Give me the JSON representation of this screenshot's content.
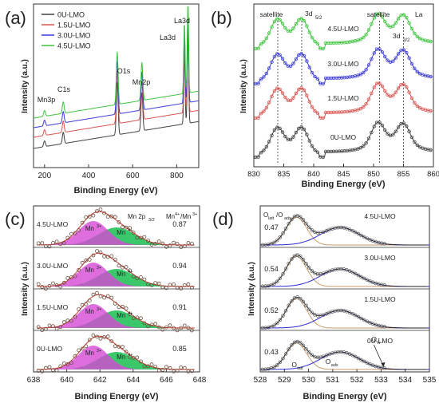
{
  "colors": {
    "0U-LMO": "#404040",
    "1.5U-LMO": "#d9534f",
    "3.0U-LMO": "#3a3ad8",
    "4.5U-LMO": "#3cc43c",
    "mn3_fill": "#d64ad6",
    "mn4_fill": "#25c25a",
    "fit_red": "#c0392b",
    "fit_blue": "#2a2ad0",
    "olat_fill": "#c89a6e",
    "oads_fill": "#8a7ad6"
  },
  "chart_data": [
    {
      "panel_label": "(a)",
      "type": "line",
      "xlabel": "Binding Energy (eV)",
      "ylabel": "Intensity (a.u.)",
      "xlim": [
        150,
        900
      ],
      "xticks": [
        200,
        400,
        600,
        800
      ],
      "legend_position": "top-left",
      "series": [
        {
          "name": "0U-LMO"
        },
        {
          "name": "1.5U-LMO"
        },
        {
          "name": "3.0U-LMO"
        },
        {
          "name": "4.5U-LMO"
        }
      ],
      "peaks": [
        {
          "x": 200,
          "label": "Mn3p",
          "height": 0.06
        },
        {
          "x": 285,
          "label": "C1s",
          "height": 0.12
        },
        {
          "x": 530,
          "label": "O1s",
          "height": 0.55
        },
        {
          "x": 642,
          "label": "Mn2p",
          "height": 0.4
        },
        {
          "x": 835,
          "label": "La3d",
          "height": 0.75
        },
        {
          "x": 851,
          "label": "La3d",
          "height": 0.95
        }
      ],
      "annotations": [
        "Mn3p",
        "C1s",
        "O1s",
        "Mn2p",
        "La3d",
        "La3d"
      ]
    },
    {
      "panel_label": "(b)",
      "type": "line",
      "xlabel": "Binding Energy (eV)",
      "ylabel": "Intensity (a.u.)",
      "xlim": [
        830,
        860
      ],
      "xticks": [
        830,
        835,
        840,
        845,
        850,
        855,
        860
      ],
      "series": [
        {
          "name": "0U-LMO",
          "peaks": [
            833.9,
            838.0,
            850.7,
            855.0
          ]
        },
        {
          "name": "1.5U-LMO",
          "peaks": [
            833.9,
            838.0,
            850.7,
            855.0
          ]
        },
        {
          "name": "3.0U-LMO",
          "peaks": [
            833.9,
            838.0,
            850.7,
            855.0
          ]
        },
        {
          "name": "4.5U-LMO",
          "peaks": [
            833.9,
            838.0,
            850.7,
            855.0
          ]
        }
      ],
      "reference_lines": [
        834,
        838,
        851,
        855
      ],
      "annotations": [
        "satellite",
        "3d",
        "5/2",
        "satellite",
        "3d",
        "3/2",
        "La"
      ]
    },
    {
      "panel_label": "(c)",
      "type": "scatter",
      "xlabel": "Binding Energy (eV)",
      "ylabel": "Intensity (a.u.)",
      "xlim": [
        638,
        648
      ],
      "xticks": [
        638,
        640,
        642,
        644,
        646,
        648
      ],
      "header": {
        "peak": "Mn 2p",
        "peak_sub": "3/2",
        "ratio_num": "Mn",
        "ratio_num_sup": "4+",
        "ratio_den": "/Mn",
        "ratio_den_sup": "3+"
      },
      "components": [
        {
          "label": "Mn",
          "sup": "3+",
          "center": 641.6
        },
        {
          "label": "Mn",
          "sup": "4+",
          "center": 643.0
        }
      ],
      "samples": [
        {
          "name": "4.5U-LMO",
          "ratio": "0.87"
        },
        {
          "name": "3.0U-LMO",
          "ratio": "0.94"
        },
        {
          "name": "1.5U-LMO",
          "ratio": "0.91"
        },
        {
          "name": "0U-LMO",
          "ratio": "0.85"
        }
      ]
    },
    {
      "panel_label": "(d)",
      "type": "scatter",
      "xlabel": "Binding Energy (eV)",
      "ylabel": "Intensity (a.u.)",
      "xlim": [
        528,
        535
      ],
      "xticks": [
        528,
        529,
        530,
        531,
        532,
        533,
        534,
        535
      ],
      "header": {
        "num": "O",
        "num_sub": "latt",
        "den": "/O",
        "den_sub": "ads"
      },
      "components": [
        {
          "label": "O",
          "sub": "latt",
          "center": 529.5
        },
        {
          "label": "O",
          "sub": "ads",
          "center": 531.3
        },
        {
          "label": "O",
          "sub": "w",
          "center": 533.0
        }
      ],
      "samples": [
        {
          "name": "4.5U-LMO",
          "ratio": "0.47"
        },
        {
          "name": "3.0U-LMO",
          "ratio": "0.54"
        },
        {
          "name": "1.5U-LMO",
          "ratio": "0.52"
        },
        {
          "name": "0U-LMO",
          "ratio": "0.43"
        }
      ]
    }
  ]
}
